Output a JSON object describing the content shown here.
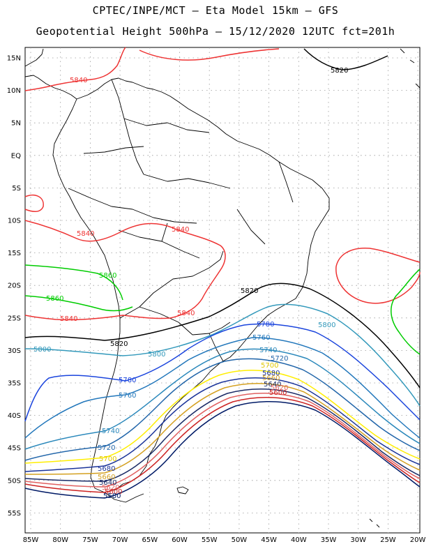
{
  "title": {
    "line1": "CPTEC/INPE/MCT –  Eta Model 15km – GFS",
    "line2": "Geopotential Height 500hPa – 15/12/2020 12UTC fct=201h"
  },
  "axes": {
    "lat_labels": [
      "15N",
      "10N",
      "5N",
      "EQ",
      "5S",
      "10S",
      "15S",
      "20S",
      "25S",
      "30S",
      "35S",
      "40S",
      "45S",
      "50S",
      "55S"
    ],
    "lon_labels": [
      "85W",
      "80W",
      "75W",
      "70W",
      "65W",
      "60W",
      "55W",
      "50W",
      "45W",
      "40W",
      "35W",
      "30W",
      "25W",
      "20W"
    ]
  },
  "colors": {
    "c5580": "#001a66",
    "c5600": "#cc2222",
    "c5620": "#e06060",
    "c5640": "#1a2a66",
    "c5660": "#d4a020",
    "c5680": "#1a3399",
    "c5700": "#ffee00",
    "c5720": "#2266aa",
    "c5740": "#2a88bb",
    "c5760": "#2277bb",
    "c5780": "#1a44dd",
    "c5800": "#3399bb",
    "c5820": "#000000",
    "c5840": "#ee3333",
    "c5860": "#00cc00"
  },
  "contours": [
    {
      "value": "5820",
      "color": "#000000",
      "labels": [
        "5820",
        "5820",
        "5820"
      ]
    },
    {
      "value": "5840",
      "color": "#ee3333",
      "labels": [
        "5840",
        "5840",
        "5840",
        "5840",
        "5840"
      ]
    },
    {
      "value": "5860",
      "color": "#00cc00",
      "labels": [
        "5860",
        "5860"
      ]
    },
    {
      "value": "5800",
      "color": "#3399bb",
      "labels": [
        "5800",
        "5800",
        "5800"
      ]
    },
    {
      "value": "5780",
      "color": "#1a44dd",
      "labels": [
        "5780",
        "5780"
      ]
    },
    {
      "value": "5760",
      "color": "#2277bb",
      "labels": [
        "5760",
        "5760"
      ]
    },
    {
      "value": "5740",
      "color": "#2a88bb",
      "labels": [
        "5740",
        "5740"
      ]
    },
    {
      "value": "5720",
      "color": "#2266aa",
      "labels": [
        "5720",
        "5720"
      ]
    },
    {
      "value": "5700",
      "color": "#ffee00",
      "labels": [
        "5700",
        "5700"
      ]
    },
    {
      "value": "5680",
      "color": "#1a3399",
      "labels": [
        "5680",
        "5680"
      ]
    },
    {
      "value": "5660",
      "color": "#d4a020",
      "labels": [
        "5660",
        "5660"
      ]
    },
    {
      "value": "5640",
      "color": "#1a2a66",
      "labels": [
        "5640",
        "5640"
      ]
    },
    {
      "value": "5620",
      "color": "#e06060",
      "labels": [
        "5620",
        "5620"
      ]
    },
    {
      "value": "5600",
      "color": "#cc2222",
      "labels": [
        "5600",
        "5600"
      ]
    },
    {
      "value": "5580",
      "color": "#001a66",
      "labels": [
        "5580"
      ]
    }
  ]
}
